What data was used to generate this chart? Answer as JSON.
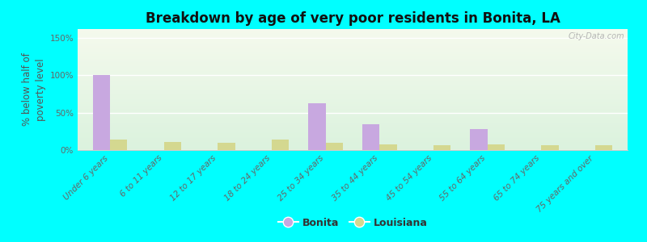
{
  "title": "Breakdown by age of very poor residents in Bonita, LA",
  "ylabel": "% below half of\npoverty level",
  "categories": [
    "Under 6 years",
    "6 to 11 years",
    "12 to 17 years",
    "18 to 24 years",
    "25 to 34 years",
    "35 to 44 years",
    "45 to 54 years",
    "55 to 64 years",
    "65 to 74 years",
    "75 years and over"
  ],
  "bonita_values": [
    100,
    0,
    0,
    0,
    63,
    35,
    0,
    28,
    0,
    0
  ],
  "louisiana_values": [
    14,
    11,
    10,
    14,
    10,
    8,
    7,
    8,
    6,
    7
  ],
  "bonita_color": "#c8a8e0",
  "louisiana_color": "#d4d890",
  "background_color": "#00ffff",
  "plot_bg_color_top": "#f5f7e8",
  "plot_bg_color_bottom": "#e0f0e0",
  "ylim": [
    0,
    162
  ],
  "yticks": [
    0,
    50,
    100,
    150
  ],
  "ytick_labels": [
    "0%",
    "50%",
    "100%",
    "150%"
  ],
  "bar_width": 0.32,
  "title_fontsize": 12,
  "axis_label_fontsize": 8.5,
  "tick_fontsize": 7.5,
  "legend_fontsize": 9,
  "watermark": "City-Data.com"
}
